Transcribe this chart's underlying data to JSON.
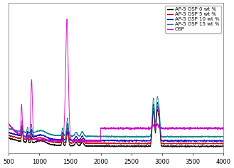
{
  "xmin": 500,
  "xmax": 4000,
  "series": [
    {
      "label": "AP-5 OSP 0 wt %",
      "color": "#000000"
    },
    {
      "label": "AP-5 OSP 5 wt %",
      "color": "#cc0000"
    },
    {
      "label": "AP-5 OSP 10 wt %",
      "color": "#0000cc"
    },
    {
      "label": "AP-5 OSP 15 wt %",
      "color": "#008080"
    },
    {
      "label": "OSP",
      "color": "#cc00cc"
    }
  ],
  "background": "#ffffff",
  "legend_fontsize": 5.0,
  "tick_fontsize": 6.0,
  "xticks": [
    500,
    1000,
    1500,
    2000,
    2500,
    3000,
    3500,
    4000
  ]
}
